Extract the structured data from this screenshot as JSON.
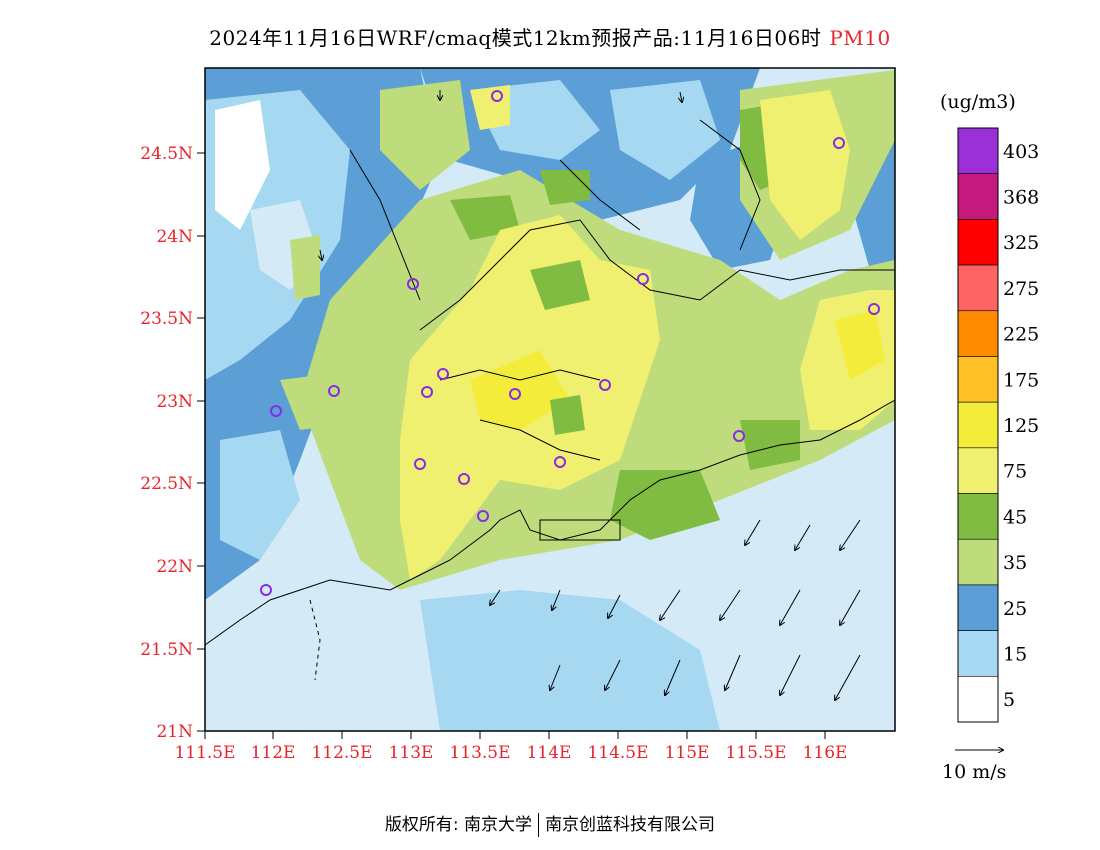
{
  "title": {
    "main": "2024年11月16日WRF/cmaq模式12km预报产品:11月16日06时",
    "pollutant": "PM10"
  },
  "map": {
    "lat_labels": [
      "24.5N",
      "24N",
      "23.5N",
      "23N",
      "22.5N",
      "22N",
      "21.5N",
      "21N"
    ],
    "lon_labels": [
      "111.5E",
      "112E",
      "112.5E",
      "113E",
      "113.5E",
      "114E",
      "114.5E",
      "115E",
      "115.5E",
      "116E"
    ]
  },
  "legend": {
    "unit": "(ug/m3)",
    "levels": [
      {
        "label": "403",
        "color": "#9b30d8"
      },
      {
        "label": "368",
        "color": "#c5197d"
      },
      {
        "label": "325",
        "color": "#ff0000"
      },
      {
        "label": "275",
        "color": "#ff6464"
      },
      {
        "label": "225",
        "color": "#ff8c00"
      },
      {
        "label": "175",
        "color": "#ffc125"
      },
      {
        "label": "125",
        "color": "#f4ec3a"
      },
      {
        "label": "75",
        "color": "#f0f070"
      },
      {
        "label": "45",
        "color": "#7fbc41"
      },
      {
        "label": "35",
        "color": "#bfdc7c"
      },
      {
        "label": "25",
        "color": "#5b9fd6"
      },
      {
        "label": "15",
        "color": "#a6d8f2"
      },
      {
        "label": "5",
        "color": "#ffffff"
      }
    ],
    "wind_ref": "10 m/s"
  },
  "footer": {
    "left": "版权所有: 南京大学",
    "right": "南京创蓝科技有限公司"
  }
}
